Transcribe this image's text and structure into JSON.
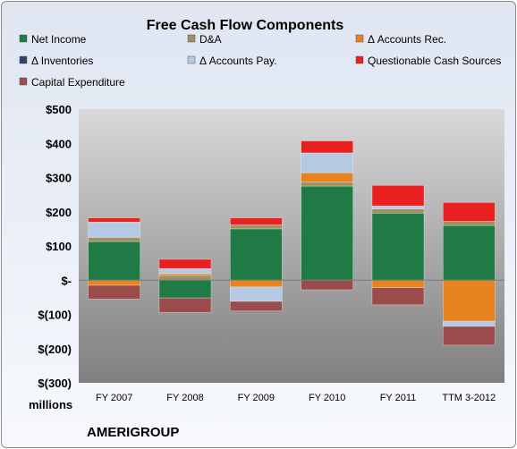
{
  "chart_data": {
    "type": "bar",
    "stacked": true,
    "title": "Free Cash Flow Components",
    "unit_label": "millions",
    "brand": "AMERIGROUP",
    "legend_position": "top",
    "grid": false,
    "ylim": [
      -300,
      500
    ],
    "yticks": [
      -300,
      -200,
      -100,
      0,
      100,
      200,
      300,
      400,
      500
    ],
    "ytick_labels": [
      "$(300)",
      "$(200)",
      "$(100)",
      "$-",
      "$100",
      "$200",
      "$300",
      "$400",
      "$500"
    ],
    "categories": [
      "FY 2007",
      "FY 2008",
      "FY 2009",
      "FY 2010",
      "FY 2011",
      "TTM 3-2012"
    ],
    "series": [
      {
        "name": "Net Income",
        "color": "#1f7a45",
        "values": [
          113,
          -52,
          150,
          275,
          196,
          160
        ]
      },
      {
        "name": "D&A",
        "color": "#9e9062",
        "values": [
          12,
          14,
          12,
          12,
          12,
          12
        ]
      },
      {
        "name": "Δ Accounts Rec.",
        "color": "#e8841f",
        "values": [
          -15,
          5,
          -20,
          27,
          -22,
          -120
        ]
      },
      {
        "name": "Δ Inventories",
        "color": "#2a4566",
        "values": [
          0,
          0,
          0,
          0,
          0,
          0
        ]
      },
      {
        "name": "Δ Accounts Pay.",
        "color": "#b5c9e3",
        "values": [
          45,
          15,
          -42,
          58,
          9,
          -15
        ]
      },
      {
        "name": "Questionable Cash Sources",
        "color": "#e82020",
        "values": [
          12,
          27,
          20,
          35,
          60,
          55
        ]
      },
      {
        "name": "Capital Expenditure",
        "color": "#9b4b4b",
        "values": [
          -40,
          -42,
          -28,
          -28,
          -50,
          -55
        ]
      }
    ]
  }
}
